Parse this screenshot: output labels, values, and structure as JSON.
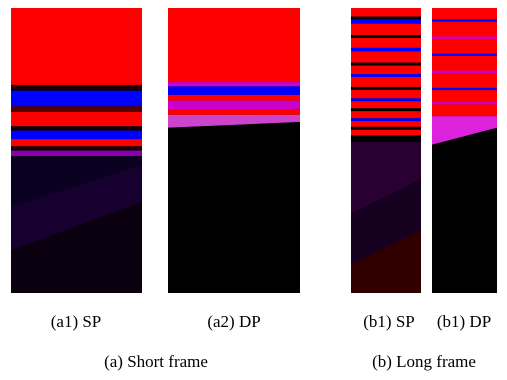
{
  "panels": [
    {
      "id": "a1",
      "label": "(a1) SP"
    },
    {
      "id": "a2",
      "label": "(a2) DP"
    },
    {
      "id": "b1",
      "label": "(b1) SP"
    },
    {
      "id": "b2",
      "label": "(b1) DP"
    }
  ],
  "captions": {
    "short": "(a) Short frame",
    "long": "(b) Long frame"
  },
  "colors": {
    "red": "#ff0000",
    "blue": "#0000ff",
    "magenta": "#cc00cc",
    "black": "#000000"
  }
}
